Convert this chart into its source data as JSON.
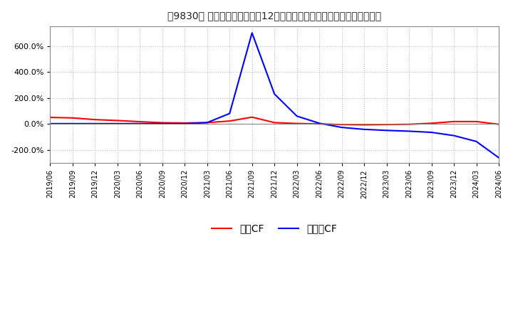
{
  "title": "［9830］ キャッシュフローの12か月移動合計の対前年同期増減率の推移",
  "background_color": "#ffffff",
  "plot_bg_color": "#ffffff",
  "grid_color": "#bbbbbb",
  "ylim": [
    -300,
    750
  ],
  "yticks": [
    -200,
    0,
    200,
    400,
    600
  ],
  "legend_labels": [
    "営業CF",
    "フリーCF"
  ],
  "line_colors": [
    "#ff0000",
    "#0000ff"
  ],
  "x_labels": [
    "2019/06",
    "2019/09",
    "2019/12",
    "2020/03",
    "2020/06",
    "2020/09",
    "2020/12",
    "2021/03",
    "2021/06",
    "2021/09",
    "2021/12",
    "2022/03",
    "2022/06",
    "2022/09",
    "2022/12",
    "2023/03",
    "2023/06",
    "2023/09",
    "2023/12",
    "2024/03",
    "2024/06"
  ],
  "operating_cf": [
    50,
    46,
    33,
    26,
    17,
    9,
    7,
    10,
    22,
    52,
    10,
    3,
    0,
    -5,
    -7,
    -5,
    -3,
    5,
    18,
    18,
    -3
  ],
  "free_cf": [
    2,
    2,
    2,
    2,
    2,
    2,
    2,
    10,
    80,
    700,
    230,
    60,
    5,
    -27,
    -42,
    -50,
    -56,
    -65,
    -90,
    -135,
    -260
  ]
}
